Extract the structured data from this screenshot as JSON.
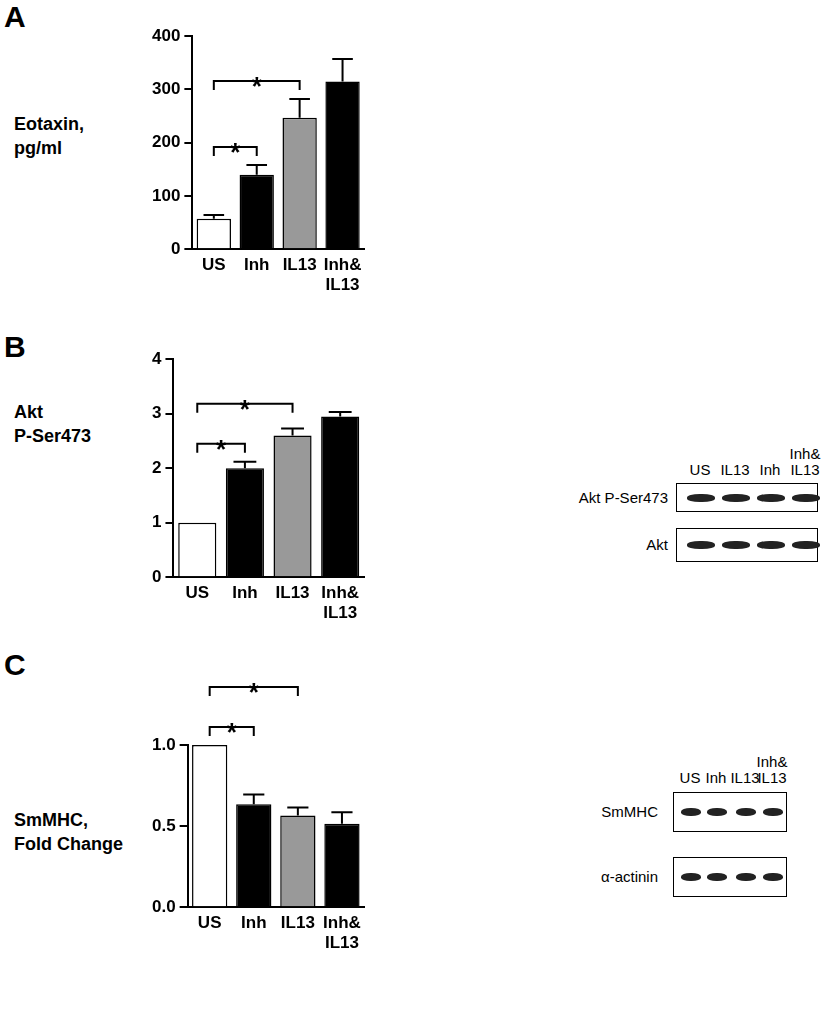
{
  "chart_data": [
    {
      "type": "bar",
      "title": "A",
      "y_label": [
        "Eotaxin,",
        "pg/ml"
      ],
      "categories": [
        "US",
        "Inh",
        "IL13",
        [
          "Inh&",
          "IL13"
        ]
      ],
      "values": [
        57,
        140,
        247,
        315
      ],
      "errors": [
        7,
        18,
        35,
        42
      ],
      "colors": [
        "#ffffff",
        "#000000",
        "#999999",
        "#000000"
      ],
      "ylim": [
        0,
        400
      ],
      "yticks": [
        0,
        100,
        200,
        300,
        400
      ],
      "grid": false,
      "annotations": [
        {
          "from": "US",
          "to": "Inh",
          "label": "*"
        },
        {
          "from": "US",
          "to": "IL13",
          "label": "*"
        }
      ]
    },
    {
      "type": "bar",
      "title": "B",
      "y_label": [
        "Akt",
        "P-Ser473"
      ],
      "categories": [
        "US",
        "Inh",
        "IL13",
        [
          "Inh&",
          "IL13"
        ]
      ],
      "values": [
        1,
        2.0,
        2.6,
        2.95
      ],
      "errors": [
        0,
        0.12,
        0.13,
        0.08
      ],
      "colors": [
        "#ffffff",
        "#000000",
        "#999999",
        "#000000"
      ],
      "ylim": [
        0,
        4
      ],
      "yticks": [
        0,
        1,
        2,
        3,
        4
      ],
      "grid": false,
      "annotations": [
        {
          "from": "US",
          "to": "Inh",
          "label": "*"
        },
        {
          "from": "US",
          "to": "IL13",
          "label": "*"
        }
      ]
    },
    {
      "type": "bar",
      "title": "C",
      "y_label": [
        "SmMHC,",
        "Fold Change"
      ],
      "categories": [
        "US",
        "Inh",
        "IL13",
        [
          "Inh&",
          "IL13"
        ]
      ],
      "values": [
        1.0,
        0.635,
        0.565,
        0.515
      ],
      "errors": [
        0,
        0.06,
        0.05,
        0.07
      ],
      "colors": [
        "#ffffff",
        "#000000",
        "#999999",
        "#000000"
      ],
      "ylim": [
        0,
        1
      ],
      "yticks": [
        {
          "value": 0,
          "label": "0.0"
        },
        {
          "value": 0.5,
          "label": "0.5"
        },
        {
          "value": 1,
          "label": "1.0"
        }
      ],
      "grid": false,
      "annotations": [
        {
          "from": "US",
          "to": "Inh",
          "label": "*"
        },
        {
          "from": "US",
          "to": "IL13",
          "label": "*"
        }
      ]
    }
  ],
  "blots": [
    {
      "panel": "B",
      "lanes": [
        "US",
        "IL13",
        "Inh",
        [
          "Inh&",
          "IL13"
        ]
      ],
      "rows": [
        "Akt P-Ser473",
        "Akt"
      ]
    },
    {
      "panel": "C",
      "lanes": [
        "US",
        "Inh",
        "IL13",
        [
          "Inh&",
          "IL13"
        ]
      ],
      "rows": [
        "SmMHC",
        "α-actinin"
      ]
    }
  ]
}
